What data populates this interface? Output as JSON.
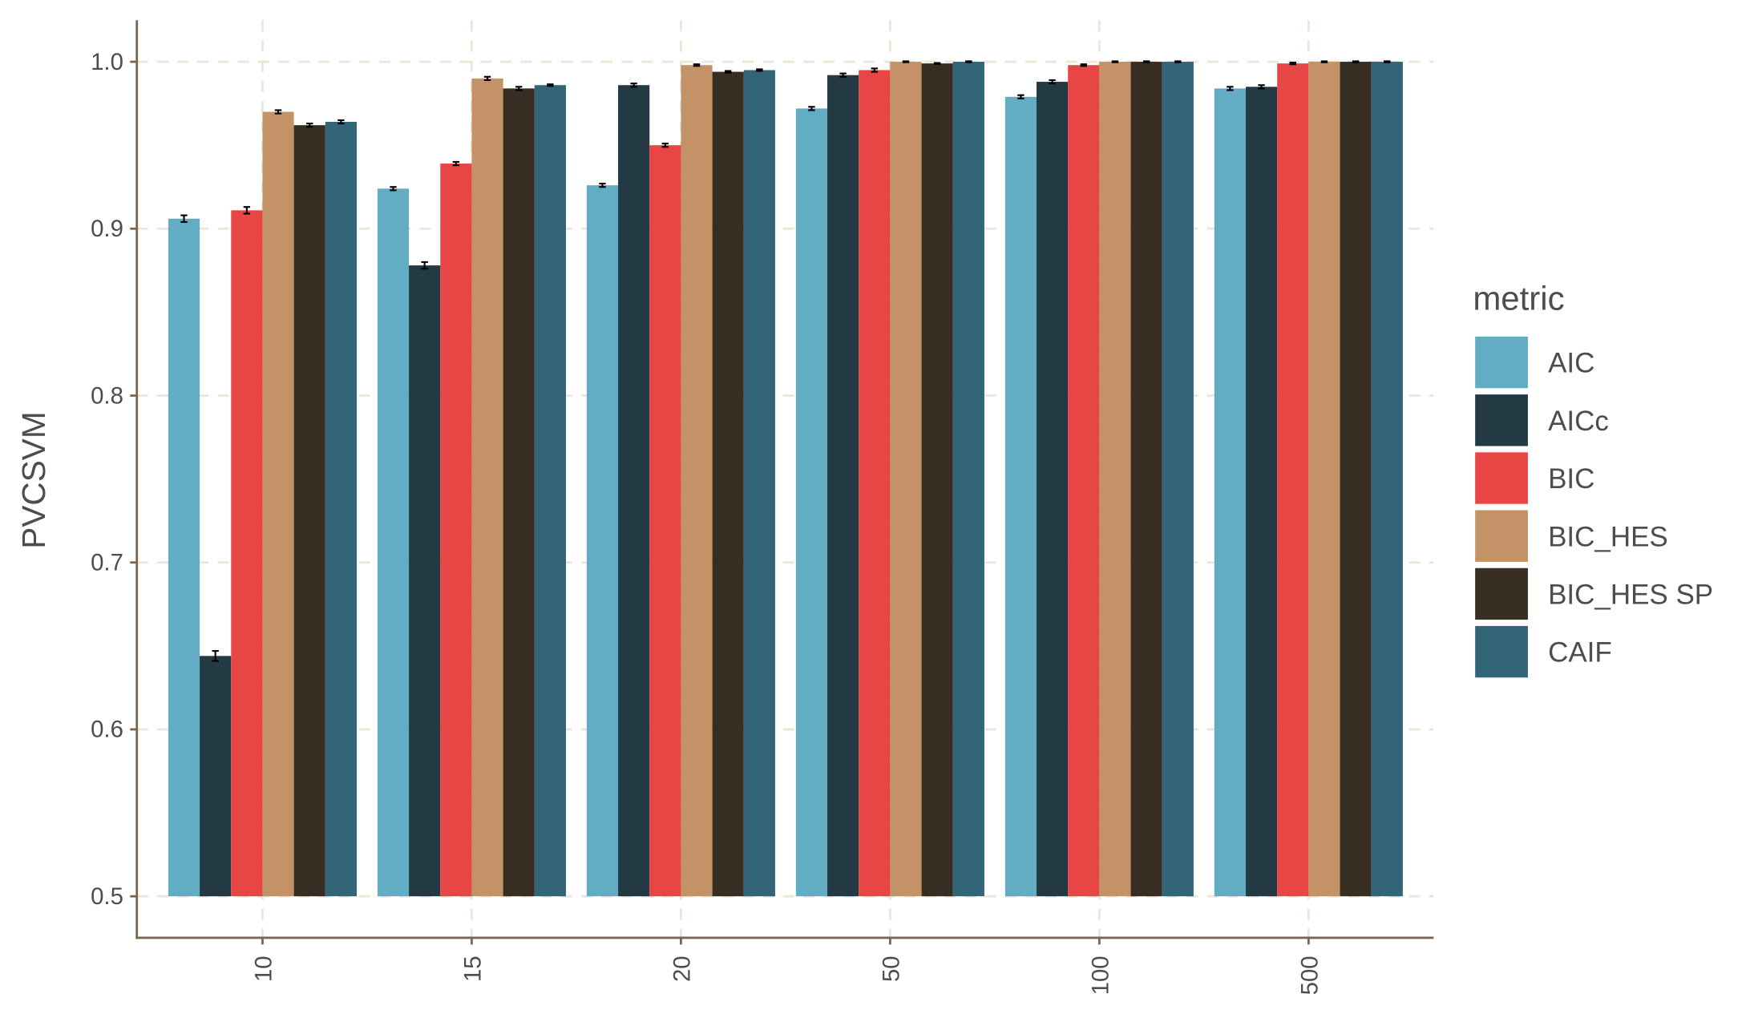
{
  "chart_data": {
    "type": "bar",
    "title": "",
    "xlabel": "",
    "ylabel": "PVCSVM",
    "ylim": [
      0.5,
      1.0
    ],
    "yticks": [
      "0.5",
      "0.6",
      "0.7",
      "0.8",
      "0.9",
      "1.0"
    ],
    "categories": [
      "10",
      "15",
      "20",
      "50",
      "100",
      "500"
    ],
    "legend": {
      "title": "metric",
      "position": "right"
    },
    "grid": true,
    "series": [
      {
        "name": "AIC",
        "color": "#63adc4",
        "values": [
          0.906,
          0.924,
          0.926,
          0.972,
          0.979,
          0.984
        ],
        "se": [
          0.002,
          0.001,
          0.001,
          0.001,
          0.001,
          0.001
        ]
      },
      {
        "name": "AICc",
        "color": "#233a44",
        "values": [
          0.644,
          0.878,
          0.986,
          0.992,
          0.988,
          0.985
        ],
        "se": [
          0.003,
          0.002,
          0.001,
          0.001,
          0.001,
          0.001
        ]
      },
      {
        "name": "BIC",
        "color": "#e84545",
        "values": [
          0.911,
          0.939,
          0.95,
          0.995,
          0.998,
          0.999
        ],
        "se": [
          0.002,
          0.001,
          0.001,
          0.001,
          0.0005,
          0.0005
        ]
      },
      {
        "name": "BIC_HES",
        "color": "#c39266",
        "values": [
          0.97,
          0.99,
          0.998,
          1.0,
          1.0,
          1.0
        ],
        "se": [
          0.001,
          0.001,
          0.0005,
          0.0003,
          0.0003,
          0.0003
        ]
      },
      {
        "name": "BIC_HES SP",
        "color": "#372d22",
        "values": [
          0.962,
          0.984,
          0.994,
          0.999,
          1.0,
          1.0
        ],
        "se": [
          0.001,
          0.001,
          0.0005,
          0.0003,
          0.0003,
          0.0003
        ]
      },
      {
        "name": "CAIF",
        "color": "#316577",
        "values": [
          0.964,
          0.986,
          0.995,
          1.0,
          1.0,
          1.0
        ],
        "se": [
          0.001,
          0.0005,
          0.0005,
          0.0003,
          0.0003,
          0.0003
        ]
      }
    ]
  }
}
